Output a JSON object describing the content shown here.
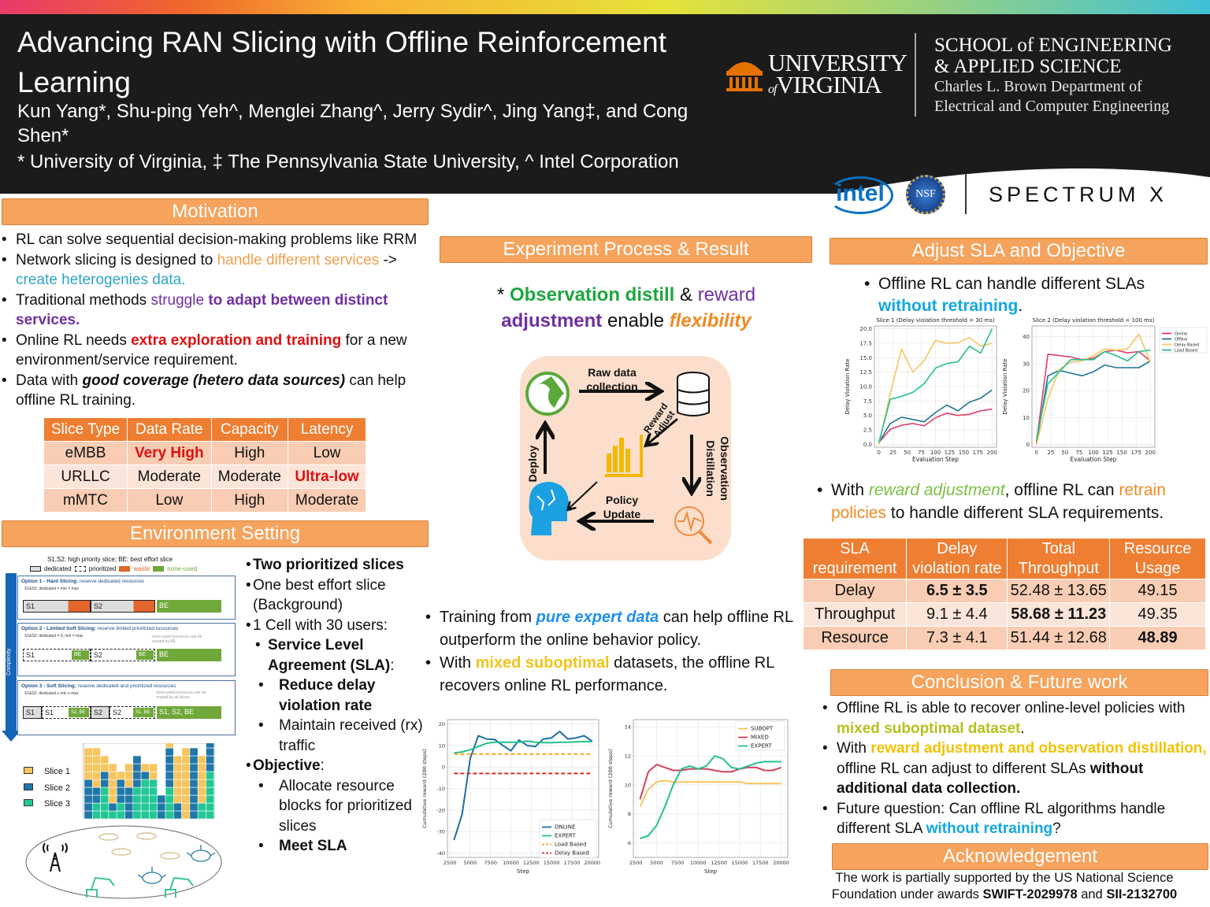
{
  "header": {
    "title": "Advancing RAN Slicing with Offline Reinforcement Learning",
    "authors": "Kun Yang*, Shu-ping Yeh^, Menglei Zhang^,  Jerry Sydir^, Jing Yang‡, and Cong Shen*",
    "affiliations": "* University of Virginia, ‡ The Pennsylvania State University, ^ Intel Corporation",
    "uva_logo": [
      "UNIVERSITY",
      "of",
      "VIRGINIA"
    ],
    "school": [
      "SCHOOL of ENGINEERING",
      "& APPLIED SCIENCE",
      "Charles L. Brown Department of",
      "Electrical and Computer Engineering"
    ],
    "sponsor_logos": [
      "intel",
      "NSF",
      "SPECTRUM X"
    ],
    "accent_color": "#f5a35d"
  },
  "motivation": {
    "title": "Motivation",
    "bullets": [
      [
        {
          "t": "RL can solve sequential decision-making problems like RRM"
        }
      ],
      [
        {
          "t": "Network slicing is designed to "
        },
        {
          "t": "handle different services",
          "s": "or"
        },
        {
          "t": " -> "
        },
        {
          "t": "create heterogenies data.",
          "s": "te"
        }
      ],
      [
        {
          "t": "Traditional methods "
        },
        {
          "t": "struggle ",
          "s": "pu"
        },
        {
          "t": "to adapt between distinct services.",
          "s": "pu bo"
        }
      ],
      [
        {
          "t": "Online RL needs "
        },
        {
          "t": "extra exploration and training",
          "s": "re bo"
        },
        {
          "t": " for a new environment/service requirement."
        }
      ],
      [
        {
          "t": "Data with "
        },
        {
          "t": "good coverage (hetero data sources)",
          "s": "bo it"
        },
        {
          "t": " can help offline RL training."
        }
      ]
    ],
    "slice_table": {
      "headers": [
        "Slice Type",
        "Data Rate",
        "Capacity",
        "Latency"
      ],
      "rows": [
        [
          {
            "t": "eMBB"
          },
          {
            "t": "Very High",
            "s": "re bo"
          },
          {
            "t": "High"
          },
          {
            "t": "Low"
          }
        ],
        [
          {
            "t": "URLLC"
          },
          {
            "t": "Moderate"
          },
          {
            "t": "Moderate"
          },
          {
            "t": "Ultra-low",
            "s": "re bo"
          }
        ],
        [
          {
            "t": "mMTC"
          },
          {
            "t": "Low"
          },
          {
            "t": "High"
          },
          {
            "t": "Moderate"
          }
        ]
      ]
    }
  },
  "environment": {
    "title": "Environment Setting",
    "figure": {
      "caption": "S1,S2: high priority slice; BE: best effort slice",
      "legend": [
        "dedicated",
        "prioritized",
        "waste",
        "none-used"
      ],
      "axis": "Complexity",
      "options": [
        {
          "title": "Option 1 - Hard Slicing:",
          "desc": " reserve dedicated resources",
          "rule": "S1&S2: dedicated = min = max"
        },
        {
          "title": "Option 2 - Limited Soft Slicing:",
          "desc": " reserve limited prioritized resources",
          "rule": "S1&S2: dedicated = 0; min = max",
          "note": "none-used resources can be reused by BE"
        },
        {
          "title": "Option 3 - Soft Slicing:",
          "desc": " reserve dedicated and prioritized resources",
          "rule": "S1&S2: dedicated ≤ min ≤ max",
          "note": "none-used resources can be reused by all slices"
        }
      ],
      "blocks": {
        "s1": "S1",
        "s2": "S2",
        "be": "BE",
        "s2be": "S2, BE",
        "s1be": "S1, BE",
        "all": "S1, S2, BE"
      },
      "slices": [
        "Slice 1",
        "Slice 2",
        "Slice 3"
      ],
      "slice_colors": [
        "#f7c55f",
        "#1f77a8",
        "#22c795"
      ],
      "resource_columns": [
        [
          0,
          5,
          4
        ],
        [
          2,
          2,
          5
        ],
        [
          4,
          2,
          2
        ],
        [
          1,
          1,
          5
        ],
        [
          2,
          3,
          1
        ],
        [
          0,
          4,
          3
        ],
        [
          4,
          4,
          0
        ],
        [
          5,
          1,
          1
        ],
        [
          5,
          0,
          2
        ],
        [
          0,
          3,
          0
        ],
        [
          4,
          5,
          2
        ],
        [
          0,
          2,
          6
        ],
        [
          0,
          0,
          9
        ],
        [
          0,
          9,
          0
        ],
        [
          2,
          0,
          6
        ],
        [
          6,
          4,
          0
        ]
      ]
    },
    "bullets": [
      {
        "lvl": 0,
        "seg": [
          {
            "t": "Two prioritized slices",
            "s": "bo"
          }
        ]
      },
      {
        "lvl": 0,
        "seg": [
          {
            "t": "One best effort slice (Background)"
          }
        ]
      },
      {
        "lvl": 0,
        "seg": [
          {
            "t": "1 Cell with 30 users:"
          }
        ]
      },
      {
        "lvl": 1,
        "seg": [
          {
            "t": "Service Level Agreement (SLA)",
            "s": "bo"
          },
          {
            "t": ":"
          }
        ]
      },
      {
        "lvl": 2,
        "seg": [
          {
            "t": "Reduce delay violation rate",
            "s": "bo"
          }
        ]
      },
      {
        "lvl": 2,
        "seg": [
          {
            "t": "Maintain received (rx) traffic"
          }
        ]
      },
      {
        "lvl": 0,
        "seg": [
          {
            "t": "Objective",
            "s": "bo"
          },
          {
            "t": ":"
          }
        ]
      },
      {
        "lvl": 2,
        "seg": [
          {
            "t": "Allocate resource blocks for prioritized slices"
          }
        ]
      },
      {
        "lvl": 2,
        "seg": [
          {
            "t": "Meet SLA",
            "s": "bo"
          }
        ]
      }
    ]
  },
  "experiment": {
    "title": "Experiment Process & Result",
    "tagline": [
      {
        "t": "* "
      },
      {
        "t": "Observation distill",
        "s": "gr bo"
      },
      {
        "t": " & "
      },
      {
        "t": "reward",
        "s": "pu"
      },
      {
        "t": " adjustment",
        "s": "pu bo"
      },
      {
        "t": " enable "
      },
      {
        "t": "flexibility",
        "s": "fl bo it"
      }
    ],
    "cycle": {
      "raw": "Raw data collection",
      "reward": "Reward Adjust",
      "obs": "Observation Distillation",
      "policy": "Policy Update",
      "deploy": "Deploy"
    },
    "bullets": [
      [
        {
          "t": "Training from "
        },
        {
          "t": "pure expert data",
          "s": "bl bo it"
        },
        {
          "t": " can help offline RL outperform the online behavior policy."
        }
      ],
      [
        {
          "t": "With "
        },
        {
          "t": "mixed suboptimal",
          "s": "ye bo"
        },
        {
          "t": " datasets, the offline RL recovers online RL performance."
        }
      ]
    ]
  },
  "adjust": {
    "title": "Adjust SLA and Objective",
    "bullet1": [
      {
        "t": "Offline RL can handle different SLAs "
      },
      {
        "t": "without retraining",
        "s": "cy bo"
      },
      {
        "t": "."
      }
    ],
    "bullet2": [
      {
        "t": "With "
      },
      {
        "t": "reward adjustment",
        "s": "lg it"
      },
      {
        "t": ", offline RL can "
      },
      {
        "t": "retrain policies",
        "s": "fl"
      },
      {
        "t": " to handle different SLA requirements."
      }
    ],
    "sla_table": {
      "headers": [
        "SLA requirement",
        "Delay violation rate",
        "Total Throughput",
        "Resource Usage"
      ],
      "rows": [
        [
          {
            "t": "Delay"
          },
          {
            "t": "6.5 ± 3.5",
            "s": "bo"
          },
          {
            "t": "52.48 ± 13.65"
          },
          {
            "t": "49.15"
          }
        ],
        [
          {
            "t": "Throughput"
          },
          {
            "t": "9.1 ± 4.4"
          },
          {
            "t": "58.68 ± 11.23",
            "s": "bo"
          },
          {
            "t": "49.35"
          }
        ],
        [
          {
            "t": "Resource"
          },
          {
            "t": "7.3 ± 4.1"
          },
          {
            "t": "51.44 ± 12.68"
          },
          {
            "t": "48.89",
            "s": "bo"
          }
        ]
      ]
    }
  },
  "conclusion": {
    "title": "Conclusion & Future work",
    "bullets": [
      [
        {
          "t": "Offline RL is able to recover online-level policies with "
        },
        {
          "t": "mixed suboptimal dataset",
          "s": "yg bo"
        },
        {
          "t": "."
        }
      ],
      [
        {
          "t": "With "
        },
        {
          "t": "reward adjustment and observation distillation,",
          "s": "yy bo"
        },
        {
          "t": " offline RL can adjust to different SLAs "
        },
        {
          "t": "without additional data collection.",
          "s": "bo"
        }
      ],
      [
        {
          "t": "Future question: Can offline RL algorithms handle different SLA "
        },
        {
          "t": "without retraining",
          "s": "cy bo"
        },
        {
          "t": "?"
        }
      ]
    ]
  },
  "acknowledgement": {
    "title": "Acknowledgement",
    "text": [
      {
        "t": "The work is partially supported by the US National Science Foundation under awards "
      },
      {
        "t": "SWIFT-2029978",
        "s": "bo"
      },
      {
        "t": " and "
      },
      {
        "t": "SII-2132700",
        "s": "bo"
      }
    ]
  },
  "chart_data": [
    {
      "id": "slice1",
      "type": "line",
      "title": "Slice 1 (Delay violation threshold = 30 ms)",
      "xlabel": "Evaluation Step",
      "ylabel": "Delay Violation Rate",
      "xlim": [
        -8,
        208
      ],
      "ylim": [
        -0.5,
        20.5
      ],
      "xticks": [
        0,
        25,
        50,
        75,
        100,
        125,
        150,
        175,
        200
      ],
      "yticks": [
        "0.0",
        "2.5",
        "5.0",
        "7.5",
        "10.0",
        "12.5",
        "15.0",
        "17.5",
        "20.0"
      ],
      "grid": true,
      "x": [
        0,
        20,
        40,
        60,
        80,
        100,
        120,
        140,
        160,
        180,
        200
      ],
      "series": [
        {
          "name": "Online",
          "color": "#e0416b",
          "values": [
            0.3,
            2.6,
            3.3,
            3.6,
            3.2,
            4.6,
            5.4,
            5.0,
            5.2,
            5.8,
            6.1
          ]
        },
        {
          "name": "Offline",
          "color": "#1d7595",
          "values": [
            0.3,
            3.6,
            4.7,
            4.3,
            3.9,
            5.5,
            6.8,
            5.8,
            7.3,
            8.0,
            9.4
          ]
        },
        {
          "name": "Delay Based",
          "color": "#f7c55f",
          "values": [
            0,
            8.8,
            16.5,
            12.5,
            14.5,
            18.0,
            17.5,
            17.6,
            18.5,
            17.0,
            17.5
          ]
        },
        {
          "name": "Load Based",
          "color": "#25c08e",
          "values": [
            0.3,
            7.8,
            8.3,
            9.0,
            10.5,
            13.2,
            14.0,
            14.3,
            17.0,
            15.8,
            20.0
          ]
        }
      ]
    },
    {
      "id": "slice2",
      "type": "line",
      "title": "Slice 2 (Delay violation threshold = 100 ms)",
      "xlabel": "Evaluation Step",
      "ylabel": "Delay Violation Rate",
      "xlim": [
        -8,
        208
      ],
      "ylim": [
        -1,
        44
      ],
      "xticks": [
        0,
        25,
        50,
        75,
        100,
        125,
        150,
        175,
        200
      ],
      "yticks": [
        "0",
        "10",
        "20",
        "30",
        "40"
      ],
      "grid": true,
      "legend": "outside-right",
      "x": [
        0,
        20,
        40,
        60,
        80,
        100,
        120,
        140,
        160,
        180,
        200
      ],
      "series": [
        {
          "name": "Online",
          "color": "#e0416b",
          "values": [
            1,
            33.5,
            33,
            32.5,
            31.5,
            32,
            34.5,
            35,
            34,
            34.5,
            31
          ]
        },
        {
          "name": "Offline",
          "color": "#1d7595",
          "values": [
            0.5,
            25.5,
            27.5,
            26.5,
            25.5,
            27,
            29.5,
            28.5,
            28.5,
            28.5,
            31
          ]
        },
        {
          "name": "Delay Based",
          "color": "#f7c55f",
          "values": [
            0,
            17,
            28,
            30.5,
            31,
            33,
            35.5,
            35,
            35.5,
            41,
            30.5
          ]
        },
        {
          "name": "Load Based",
          "color": "#25c08e",
          "values": [
            2,
            22.5,
            27,
            31.5,
            31.5,
            31.5,
            34.5,
            33,
            31,
            34.5,
            35
          ]
        }
      ]
    },
    {
      "id": "expert",
      "type": "line",
      "title": "",
      "xlabel": "Step",
      "ylabel": "Cumulative reward (200 steps)",
      "xlim": [
        2200,
        20800
      ],
      "ylim": [
        -42,
        22
      ],
      "xticks": [
        2500,
        5000,
        7500,
        10000,
        12500,
        15000,
        17500,
        20000
      ],
      "yticks": [
        "-40",
        "-30",
        "-20",
        "-10",
        "0",
        "10",
        "20"
      ],
      "grid": true,
      "legend": "lower-right",
      "x": [
        3000,
        4000,
        5000,
        6000,
        7000,
        8000,
        9000,
        10000,
        11000,
        12000,
        13000,
        14000,
        15000,
        16000,
        17000,
        18000,
        19000,
        20000
      ],
      "series": [
        {
          "name": "ONLINE",
          "color": "#1f6fa5",
          "values": [
            -34,
            -22,
            4,
            14.5,
            13,
            12.8,
            10,
            7.5,
            12.5,
            10,
            9.5,
            13,
            13.5,
            16.5,
            13,
            13.5,
            14.5,
            12
          ]
        },
        {
          "name": "EXPERT",
          "color": "#25c08e",
          "values": [
            6.5,
            7,
            8,
            9.5,
            11,
            11.5,
            11.5,
            11.5,
            11.5,
            12,
            11.5,
            11.3,
            11.3,
            11.5,
            11.5,
            11.7,
            11.8,
            11.8
          ]
        },
        {
          "name": "Load Based",
          "color": "#f2a81d",
          "dash": true,
          "values": [
            6,
            6,
            6,
            6,
            6,
            6,
            6,
            6,
            6,
            6,
            6,
            6,
            6,
            6,
            6,
            6,
            6,
            6
          ]
        },
        {
          "name": "Delay Based",
          "color": "#d62728",
          "dash": true,
          "values": [
            -3,
            -3,
            -3,
            -3,
            -3,
            -3,
            -3,
            -3,
            -3,
            -3,
            -3,
            -3,
            -3,
            -3,
            -3,
            -3,
            -3,
            -3
          ]
        }
      ]
    },
    {
      "id": "mixed",
      "type": "line",
      "title": "",
      "xlabel": "Step",
      "ylabel": "Cumulative reward (200 steps)",
      "xlim": [
        2200,
        20800
      ],
      "ylim": [
        5,
        14.5
      ],
      "xticks": [
        2500,
        5000,
        7500,
        10000,
        12500,
        15000,
        17500,
        20000
      ],
      "yticks": [
        "6",
        "8",
        "10",
        "12",
        "14"
      ],
      "grid": true,
      "legend": "upper-right",
      "x": [
        3000,
        4000,
        5000,
        6000,
        7000,
        8000,
        9000,
        10000,
        11000,
        12000,
        13000,
        14000,
        15000,
        16000,
        17000,
        18000,
        19000,
        20000
      ],
      "series": [
        {
          "name": "SUBOPT",
          "color": "#f7c55f",
          "values": [
            8.5,
            9.7,
            10.2,
            10.3,
            10.2,
            10.2,
            10.2,
            10.2,
            10.2,
            10.2,
            10.2,
            10.2,
            10.2,
            10.1,
            10.1,
            10.1,
            10.1,
            10.1
          ]
        },
        {
          "name": "MIXED",
          "color": "#d1435b",
          "values": [
            9,
            10.9,
            11.4,
            11.2,
            11,
            11,
            11.1,
            11.1,
            11.1,
            11,
            10.9,
            10.9,
            11.1,
            11.2,
            11.2,
            11,
            11,
            11.2
          ]
        },
        {
          "name": "EXPERT",
          "color": "#25c08e",
          "values": [
            6.3,
            6.5,
            7.2,
            8.5,
            10,
            11.1,
            11.3,
            11.1,
            11.3,
            12,
            11.8,
            11.2,
            11.1,
            11.3,
            11.5,
            11.6,
            11.6,
            11.6
          ]
        }
      ]
    }
  ]
}
